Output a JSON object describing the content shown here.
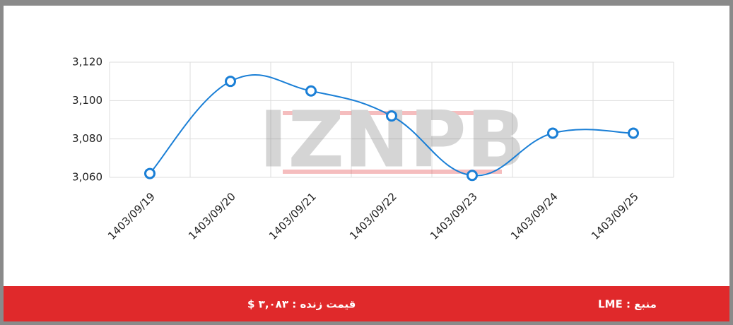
{
  "chart_data": {
    "type": "line",
    "watermark": "IZNPB",
    "categories": [
      "1403/09/19",
      "1403/09/20",
      "1403/09/21",
      "1403/09/22",
      "1403/09/23",
      "1403/09/24",
      "1403/09/25"
    ],
    "series": [
      {
        "color": "#1a7fd6",
        "values": [
          3062,
          3110,
          3105,
          3092,
          3061,
          3083,
          3083
        ]
      }
    ],
    "ylim": [
      3060,
      3120
    ],
    "yticks": [
      {
        "value": 3060,
        "label": "3,060"
      },
      {
        "value": 3080,
        "label": "3,080"
      },
      {
        "value": 3100,
        "label": "3,100"
      },
      {
        "value": 3120,
        "label": "3,120"
      }
    ],
    "grid": true
  },
  "footer": {
    "source": "منبع : LME",
    "live_price": "قیمت زنده : ۳,۰۸۳ $",
    "color": "#e0292b"
  }
}
